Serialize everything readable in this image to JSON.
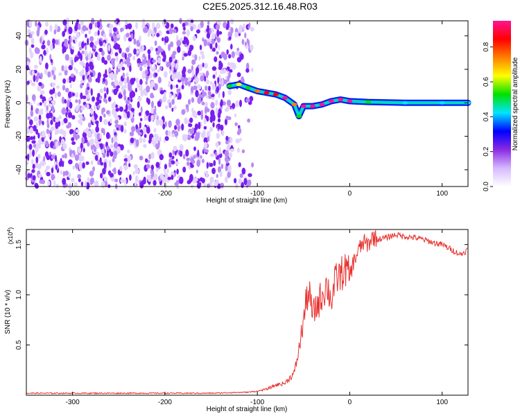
{
  "title": "C2E5.2025.312.16.48.R03",
  "chart_data": [
    {
      "type": "heatmap",
      "xlabel": "Height of straight line (km)",
      "ylabel": "Frequency (Hz)",
      "xlim": [
        -350,
        128
      ],
      "ylim": [
        -50,
        49
      ],
      "xticks": [
        -300,
        -200,
        -100,
        0,
        100
      ],
      "yticks": [
        -40,
        -20,
        0,
        20,
        40
      ],
      "xtick_labels": [
        "-300",
        "-200",
        "-100",
        "0",
        "100"
      ],
      "ytick_labels": [
        "-40",
        "-20",
        "0",
        "20",
        "40"
      ],
      "noise_region": {
        "x_from": -350,
        "x_to": -105,
        "amplitude_range": [
          0.0,
          0.25
        ]
      },
      "signal_track": {
        "x": [
          -130,
          -120,
          -110,
          -100,
          -90,
          -80,
          -70,
          -60,
          -55,
          -50,
          -40,
          -30,
          -20,
          -10,
          0,
          20,
          60,
          100,
          128
        ],
        "y": [
          10,
          11,
          9,
          7,
          6,
          5,
          3,
          -1,
          -8,
          -2,
          -2,
          -1,
          1,
          2,
          1,
          0.5,
          0,
          0,
          0
        ],
        "amplitude": [
          0.5,
          0.6,
          0.55,
          0.75,
          0.8,
          0.85,
          0.9,
          0.7,
          0.55,
          0.95,
          0.95,
          0.9,
          0.95,
          0.95,
          0.9,
          0.5,
          0.45,
          0.45,
          0.45
        ]
      },
      "colorbar": {
        "label": "Normalized spectral amplitude",
        "range": [
          0.0,
          0.95
        ],
        "ticks": [
          0.0,
          0.2,
          0.4,
          0.6,
          0.8
        ],
        "tick_labels": [
          "0.0",
          "0.2",
          "0.4",
          "0.6",
          "0.8"
        ],
        "colors": [
          "#ffffff",
          "#d6b8ff",
          "#8a2be2",
          "#0000ff",
          "#00e5ff",
          "#00e000",
          "#ffff00",
          "#ff8000",
          "#ff0000",
          "#ff1493"
        ]
      }
    },
    {
      "type": "line",
      "xlabel": "Height of straight line (km)",
      "ylabel": "SNR (10 * v/v)",
      "y_multiplier": "(x10",
      "y_multiplier_exp": "4",
      "y_multiplier_close": ")",
      "xlim": [
        -350,
        128
      ],
      "ylim": [
        0.0,
        1.65
      ],
      "xticks": [
        -300,
        -200,
        -100,
        0,
        100
      ],
      "yticks": [
        0.5,
        1.0,
        1.5
      ],
      "xtick_labels": [
        "-300",
        "-200",
        "-100",
        "0",
        "100"
      ],
      "ytick_labels": [
        "0.5",
        "1.0",
        "1.5"
      ],
      "line_color": "#e8322e",
      "series": [
        {
          "x": [
            -350,
            -300,
            -250,
            -200,
            -150,
            -110,
            -100,
            -90,
            -80,
            -70,
            -60,
            -55,
            -50,
            -45,
            -40,
            -35,
            -30,
            -25,
            -20,
            -15,
            -10,
            -5,
            0,
            5,
            10,
            15,
            20,
            25,
            30,
            40,
            50,
            60,
            70,
            80,
            90,
            100,
            110,
            120,
            128
          ],
          "y": [
            0.02,
            0.02,
            0.02,
            0.02,
            0.02,
            0.03,
            0.04,
            0.06,
            0.1,
            0.12,
            0.22,
            0.45,
            0.75,
            1.05,
            0.8,
            0.9,
            1.0,
            1.1,
            0.95,
            1.15,
            1.2,
            1.25,
            1.2,
            1.35,
            1.45,
            1.52,
            1.5,
            1.58,
            1.55,
            1.57,
            1.6,
            1.58,
            1.57,
            1.55,
            1.52,
            1.5,
            1.45,
            1.4,
            1.45
          ]
        }
      ]
    }
  ]
}
